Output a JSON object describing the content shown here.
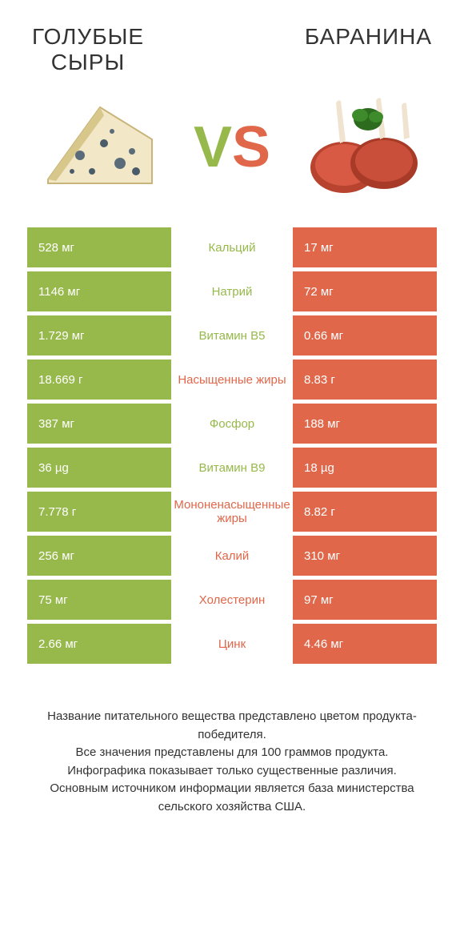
{
  "header": {
    "left_title": "ГОЛУБЫЕ\nСЫРЫ",
    "right_title": "БАРАНИНА"
  },
  "vs": {
    "v": "V",
    "s": "S"
  },
  "colors": {
    "left": "#97b94b",
    "right": "#e0674a",
    "left_text": "#97b94b",
    "right_text": "#e0674a",
    "cell_text": "#ffffff"
  },
  "table": {
    "rows": [
      {
        "left": "528 мг",
        "label": "Кальций",
        "right": "17 мг",
        "winner": "left"
      },
      {
        "left": "1146 мг",
        "label": "Натрий",
        "right": "72 мг",
        "winner": "left"
      },
      {
        "left": "1.729 мг",
        "label": "Витамин B5",
        "right": "0.66 мг",
        "winner": "left"
      },
      {
        "left": "18.669 г",
        "label": "Насыщенные жиры",
        "right": "8.83 г",
        "winner": "right"
      },
      {
        "left": "387 мг",
        "label": "Фосфор",
        "right": "188 мг",
        "winner": "left"
      },
      {
        "left": "36 µg",
        "label": "Витамин B9",
        "right": "18 µg",
        "winner": "left"
      },
      {
        "left": "7.778 г",
        "label": "Мононенасыщенные жиры",
        "right": "8.82 г",
        "winner": "right"
      },
      {
        "left": "256 мг",
        "label": "Калий",
        "right": "310 мг",
        "winner": "right"
      },
      {
        "left": "75 мг",
        "label": "Холестерин",
        "right": "97 мг",
        "winner": "right"
      },
      {
        "left": "2.66 мг",
        "label": "Цинк",
        "right": "4.46 мг",
        "winner": "right"
      }
    ]
  },
  "footer": {
    "line1": "Название питательного вещества представлено цветом продукта-победителя.",
    "line2": "Все значения представлены для 100 граммов продукта.",
    "line3": "Инфографика показывает только существенные различия.",
    "line4": "Основным источником информации является база министерства сельского хозяйства США."
  }
}
